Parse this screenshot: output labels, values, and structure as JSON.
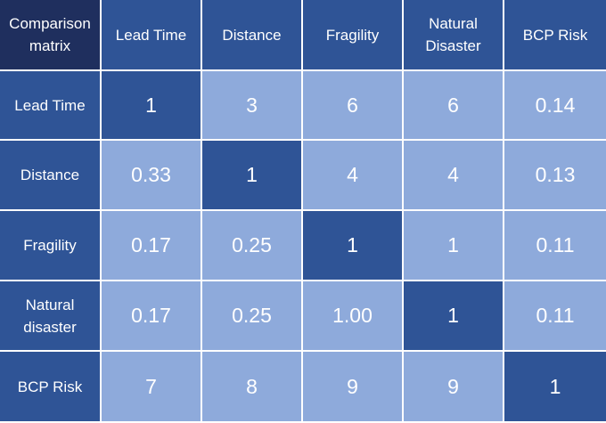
{
  "corner_label": "Comparison\nmatrix",
  "columns": [
    "Lead Time",
    "Distance",
    "Fragility",
    "Natural\nDisaster",
    "BCP Risk"
  ],
  "rows": [
    {
      "label": "Lead Time",
      "values": [
        "1",
        "3",
        "6",
        "6",
        "0.14"
      ]
    },
    {
      "label": "Distance",
      "values": [
        "0.33",
        "1",
        "4",
        "4",
        "0.13"
      ]
    },
    {
      "label": "Fragility",
      "values": [
        "0.17",
        "0.25",
        "1",
        "1",
        "0.11"
      ]
    },
    {
      "label": "Natural\ndisaster",
      "values": [
        "0.17",
        "0.25",
        "1.00",
        "1",
        "0.11"
      ]
    },
    {
      "label": "BCP Risk",
      "values": [
        "7",
        "8",
        "9",
        "9",
        "1"
      ]
    }
  ],
  "colors": {
    "corner": "#1f2f5e",
    "header": "#2f5496",
    "diagonal": "#2f5496",
    "value": "#8eaadb",
    "text": "#ffffff"
  }
}
